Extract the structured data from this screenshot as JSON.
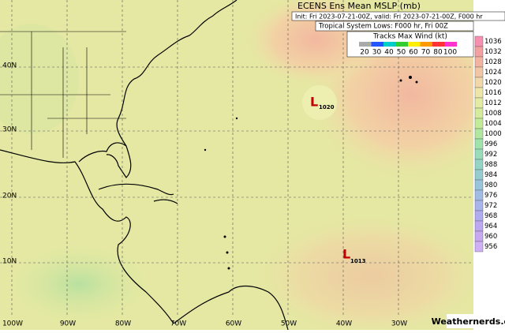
{
  "header": {
    "title": "ECENS Ens Mean MSLP (mb)",
    "init": "Init: Fri 2023-07-21-00Z, valid: Fri 2023-07-21-00Z, F000 hr",
    "lows": "Tropical System Lows: F000 hr, Fri 00Z"
  },
  "legend": {
    "title": "Tracks Max Wind (kt)",
    "speeds": [
      20,
      30,
      40,
      50,
      60,
      70,
      80,
      100
    ]
  },
  "colorbar": {
    "labels": [
      1036,
      1032,
      1028,
      1024,
      1020,
      1016,
      1012,
      1008,
      1004,
      1000,
      996,
      992,
      988,
      984,
      980,
      976,
      972,
      968,
      964,
      960,
      956
    ]
  },
  "grid": {
    "lat": [
      "40N",
      "30N",
      "20N",
      "10N"
    ],
    "lon": [
      "100W",
      "90W",
      "80W",
      "70W",
      "60W",
      "50W",
      "40W",
      "30W"
    ]
  },
  "storms": [
    {
      "symbol": "L",
      "label": "1020"
    },
    {
      "symbol": "L",
      "label": "1013"
    }
  ],
  "credit": "Weathernerds.org"
}
